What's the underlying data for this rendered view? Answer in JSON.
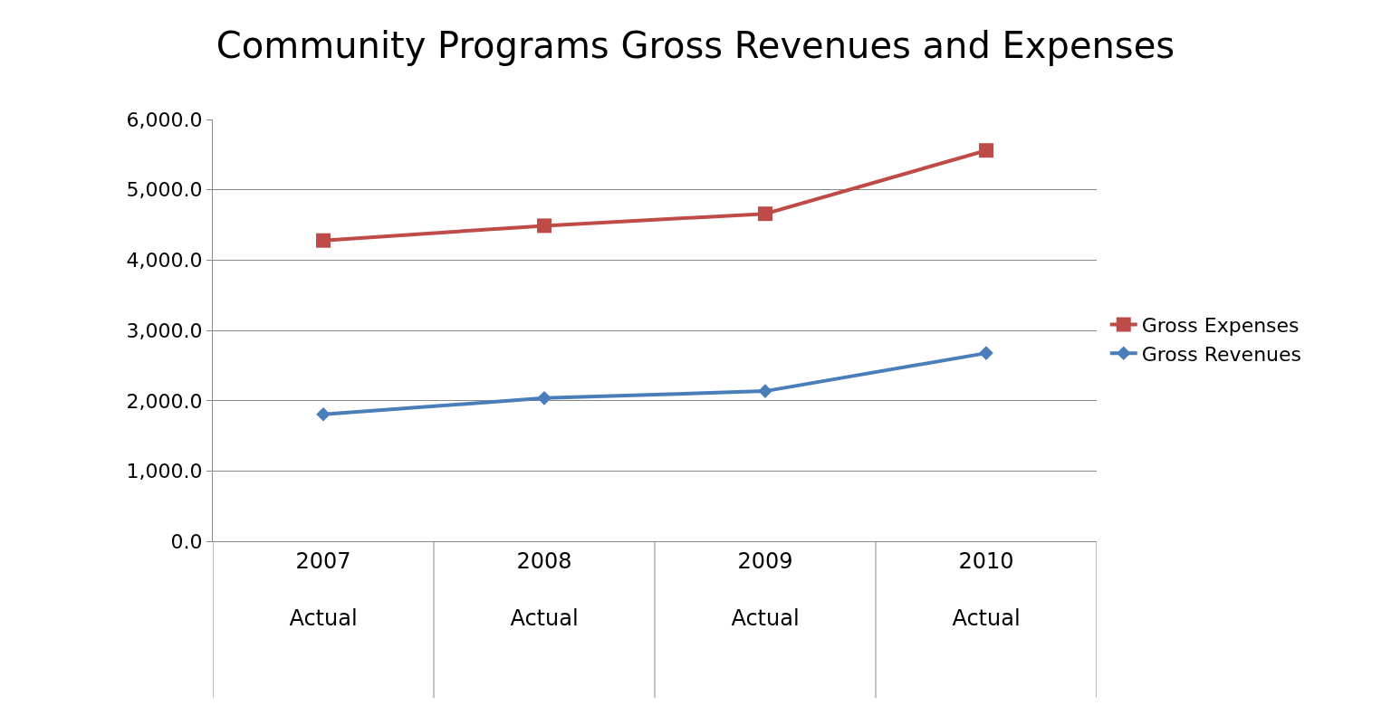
{
  "chart_data": {
    "type": "line",
    "title": "Community Programs Gross Revenues and Expenses",
    "categories": [
      "2007\nActual",
      "2008\nActual",
      "2009\nActual",
      "2010\nActual"
    ],
    "series": [
      {
        "name": "Gross Expenses",
        "color": "#be4b48",
        "marker": "square",
        "values": [
          4280,
          4490,
          4660,
          5560
        ]
      },
      {
        "name": "Gross Revenues",
        "color": "#4a7ebb",
        "marker": "diamond",
        "values": [
          1810,
          2040,
          2140,
          2680
        ]
      }
    ],
    "ylim": [
      0,
      6000
    ],
    "yticks": [
      {
        "value": 0,
        "label": "0.0"
      },
      {
        "value": 1000,
        "label": "1,000.0"
      },
      {
        "value": 2000,
        "label": "2,000.0"
      },
      {
        "value": 3000,
        "label": "3,000.0"
      },
      {
        "value": 4000,
        "label": "4,000.0"
      },
      {
        "value": 5000,
        "label": "5,000.0"
      },
      {
        "value": 6000,
        "label": "6,000.0"
      }
    ],
    "grid": "y",
    "legend": "right",
    "line_style": "solid"
  }
}
